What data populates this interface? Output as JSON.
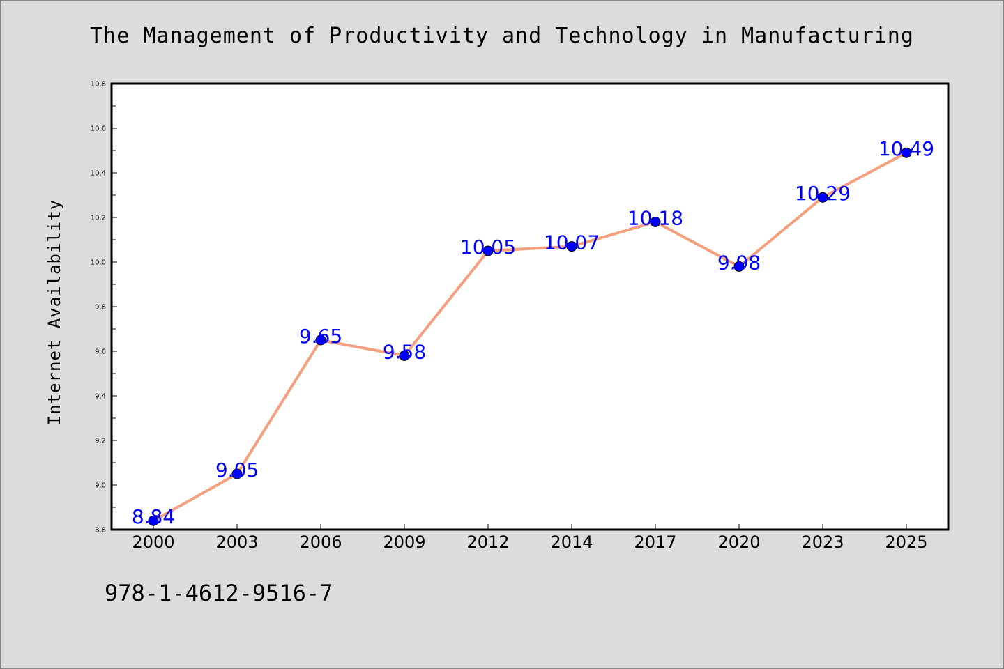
{
  "chart_data": {
    "type": "line",
    "title": "The Management of Productivity and Technology in Manufacturing",
    "xlabel": "",
    "ylabel": "Internet Availability",
    "categories": [
      "2000",
      "2003",
      "2006",
      "2009",
      "2012",
      "2014",
      "2017",
      "2020",
      "2023",
      "2025"
    ],
    "series": [
      {
        "values": [
          8.84,
          9.05,
          9.65,
          9.58,
          10.05,
          10.07,
          10.18,
          9.98,
          10.29,
          10.49
        ]
      }
    ],
    "data_labels": [
      "8.84",
      "9.05",
      "9.65",
      "9.58",
      "10.05",
      "10.07",
      "10.18",
      "9.98",
      "10.29",
      "10.49"
    ],
    "ylim": [
      8.8,
      10.8
    ],
    "yticks": [
      "8.8",
      "9.0",
      "9.2",
      "9.4",
      "9.6",
      "9.8",
      "10.0",
      "10.2",
      "10.4",
      "10.6",
      "10.8"
    ],
    "grid": false,
    "colors": {
      "line": "#f4a07e",
      "marker": "#0000ff",
      "label": "#0000ff",
      "background": "#dcdcdc",
      "plot_background": "#ffffff"
    }
  },
  "footer": {
    "isbn": "978-1-4612-9516-7"
  }
}
